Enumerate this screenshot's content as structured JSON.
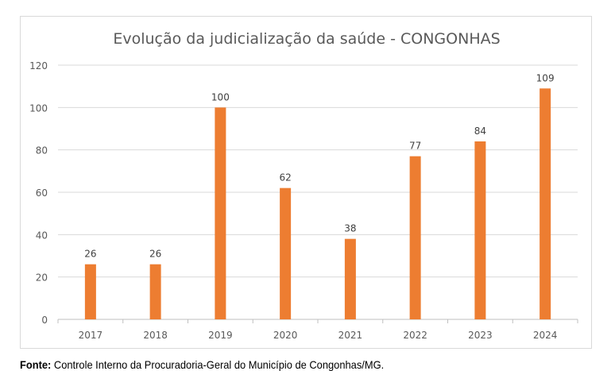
{
  "chart_data": {
    "type": "bar",
    "title": "Evolução da judicialização da saúde - CONGONHAS",
    "categories": [
      "2017",
      "2018",
      "2019",
      "2020",
      "2021",
      "2022",
      "2023",
      "2024"
    ],
    "values": [
      26,
      26,
      100,
      62,
      38,
      77,
      84,
      109
    ],
    "xlabel": "",
    "ylabel": "",
    "ylim": [
      0,
      120
    ],
    "yticks": [
      0,
      20,
      40,
      60,
      80,
      100,
      120
    ],
    "grid": true,
    "bar_color": "#ED7D31",
    "data_labels": true
  },
  "source": {
    "label": "Fonte:",
    "text": " Controle Interno da Procuradoria-Geral do Município de Congonhas/MG."
  }
}
